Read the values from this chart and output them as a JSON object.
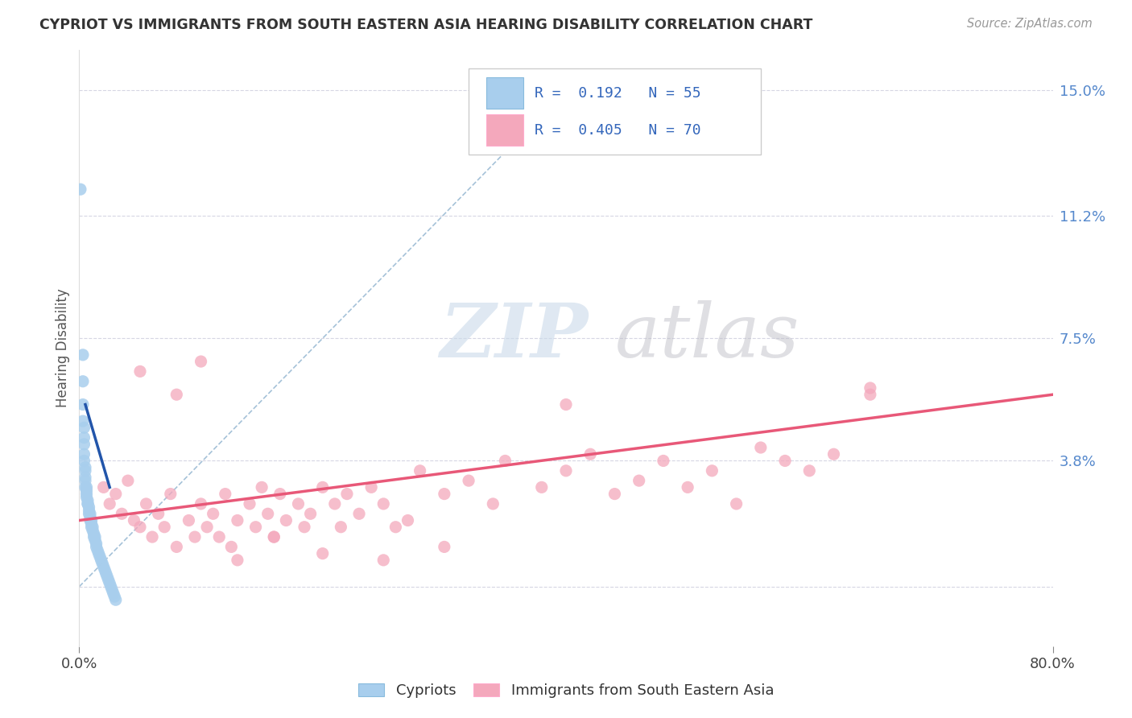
{
  "title": "CYPRIOT VS IMMIGRANTS FROM SOUTH EASTERN ASIA HEARING DISABILITY CORRELATION CHART",
  "source": "Source: ZipAtlas.com",
  "ylabel": "Hearing Disability",
  "yticks": [
    0.0,
    0.038,
    0.075,
    0.112,
    0.15
  ],
  "ytick_labels": [
    "",
    "3.8%",
    "7.5%",
    "11.2%",
    "15.0%"
  ],
  "xtick_labels": [
    "0.0%",
    "80.0%"
  ],
  "xmin": 0.0,
  "xmax": 0.8,
  "ymin": -0.018,
  "ymax": 0.162,
  "blue_R": 0.192,
  "blue_N": 55,
  "pink_R": 0.405,
  "pink_N": 70,
  "blue_color": "#A8CEED",
  "pink_color": "#F4A8BC",
  "blue_trend_color": "#2255AA",
  "pink_trend_color": "#E85878",
  "ref_line_color": "#9BBBD4",
  "background_color": "#FFFFFF",
  "legend_label_blue": "Cypriots",
  "legend_label_pink": "Immigrants from South Eastern Asia",
  "blue_scatter_x": [
    0.001,
    0.003,
    0.003,
    0.003,
    0.003,
    0.004,
    0.004,
    0.004,
    0.004,
    0.004,
    0.005,
    0.005,
    0.005,
    0.005,
    0.005,
    0.006,
    0.006,
    0.006,
    0.006,
    0.007,
    0.007,
    0.007,
    0.008,
    0.008,
    0.008,
    0.009,
    0.009,
    0.009,
    0.01,
    0.01,
    0.01,
    0.011,
    0.011,
    0.012,
    0.012,
    0.013,
    0.013,
    0.014,
    0.014,
    0.015,
    0.016,
    0.017,
    0.018,
    0.019,
    0.02,
    0.021,
    0.022,
    0.023,
    0.024,
    0.025,
    0.026,
    0.027,
    0.028,
    0.029,
    0.03
  ],
  "blue_scatter_y": [
    0.12,
    0.07,
    0.062,
    0.055,
    0.05,
    0.048,
    0.045,
    0.043,
    0.04,
    0.038,
    0.036,
    0.035,
    0.033,
    0.032,
    0.03,
    0.03,
    0.029,
    0.028,
    0.027,
    0.026,
    0.025,
    0.025,
    0.024,
    0.023,
    0.022,
    0.022,
    0.021,
    0.02,
    0.02,
    0.019,
    0.018,
    0.018,
    0.017,
    0.016,
    0.015,
    0.015,
    0.014,
    0.013,
    0.012,
    0.011,
    0.01,
    0.009,
    0.008,
    0.007,
    0.006,
    0.005,
    0.004,
    0.003,
    0.002,
    0.001,
    0.0,
    -0.001,
    -0.002,
    -0.003,
    -0.004
  ],
  "pink_scatter_x": [
    0.02,
    0.025,
    0.03,
    0.035,
    0.04,
    0.045,
    0.05,
    0.055,
    0.06,
    0.065,
    0.07,
    0.075,
    0.08,
    0.09,
    0.095,
    0.1,
    0.105,
    0.11,
    0.115,
    0.12,
    0.125,
    0.13,
    0.14,
    0.145,
    0.15,
    0.155,
    0.16,
    0.165,
    0.17,
    0.18,
    0.185,
    0.19,
    0.2,
    0.21,
    0.215,
    0.22,
    0.23,
    0.24,
    0.25,
    0.26,
    0.27,
    0.28,
    0.3,
    0.32,
    0.34,
    0.35,
    0.38,
    0.4,
    0.42,
    0.44,
    0.46,
    0.48,
    0.5,
    0.52,
    0.54,
    0.56,
    0.58,
    0.6,
    0.62,
    0.65,
    0.05,
    0.08,
    0.1,
    0.13,
    0.16,
    0.2,
    0.25,
    0.3,
    0.4,
    0.65
  ],
  "pink_scatter_y": [
    0.03,
    0.025,
    0.028,
    0.022,
    0.032,
    0.02,
    0.018,
    0.025,
    0.015,
    0.022,
    0.018,
    0.028,
    0.012,
    0.02,
    0.015,
    0.025,
    0.018,
    0.022,
    0.015,
    0.028,
    0.012,
    0.02,
    0.025,
    0.018,
    0.03,
    0.022,
    0.015,
    0.028,
    0.02,
    0.025,
    0.018,
    0.022,
    0.03,
    0.025,
    0.018,
    0.028,
    0.022,
    0.03,
    0.025,
    0.018,
    0.02,
    0.035,
    0.028,
    0.032,
    0.025,
    0.038,
    0.03,
    0.035,
    0.04,
    0.028,
    0.032,
    0.038,
    0.03,
    0.035,
    0.025,
    0.042,
    0.038,
    0.035,
    0.04,
    0.058,
    0.065,
    0.058,
    0.068,
    0.008,
    0.015,
    0.01,
    0.008,
    0.012,
    0.055,
    0.06
  ],
  "pink_trend_start_x": 0.0,
  "pink_trend_end_x": 0.8,
  "pink_trend_start_y": 0.02,
  "pink_trend_end_y": 0.058,
  "blue_trend_start_x": 0.005,
  "blue_trend_end_x": 0.025,
  "blue_trend_start_y": 0.055,
  "blue_trend_end_y": 0.03
}
